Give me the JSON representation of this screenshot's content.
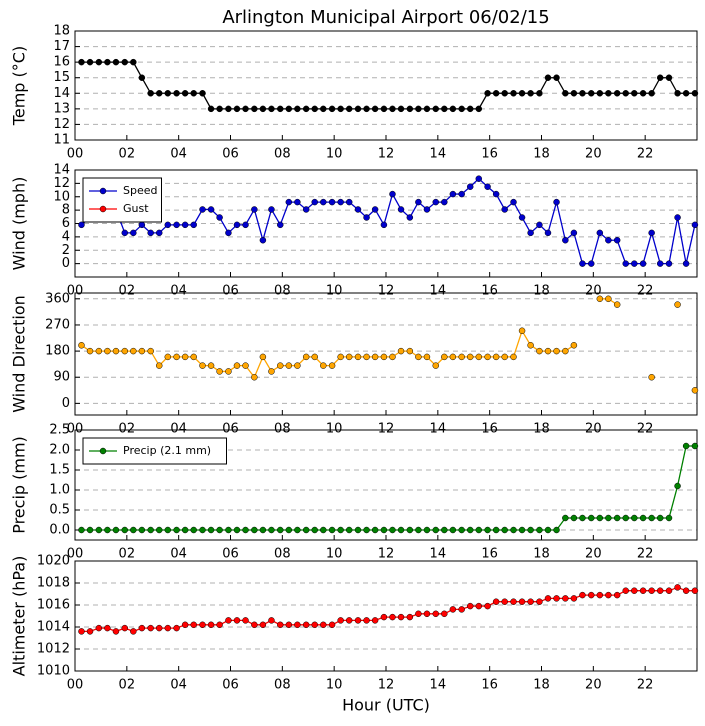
{
  "title": "Arlington Municipal Airport 06/02/15",
  "xlabel": "Hour (UTC)",
  "chart_data": [
    {
      "type": "line",
      "ylabel": "Temp (°C)",
      "x": [
        0.25,
        0.58,
        0.92,
        1.25,
        1.58,
        1.92,
        2.25,
        2.58,
        2.92,
        3.25,
        3.58,
        3.92,
        4.25,
        4.58,
        4.92,
        5.25,
        5.58,
        5.92,
        6.25,
        6.58,
        6.92,
        7.25,
        7.58,
        7.92,
        8.25,
        8.58,
        8.92,
        9.25,
        9.58,
        9.92,
        10.25,
        10.58,
        10.92,
        11.25,
        11.58,
        11.92,
        12.25,
        12.58,
        12.92,
        13.25,
        13.58,
        13.92,
        14.25,
        14.58,
        14.92,
        15.25,
        15.58,
        15.92,
        16.25,
        16.58,
        16.92,
        17.25,
        17.58,
        17.92,
        18.25,
        18.58,
        18.92,
        19.25,
        19.58,
        19.92,
        20.25,
        20.58,
        20.92,
        21.25,
        21.58,
        21.92,
        22.25,
        22.58,
        22.92,
        23.25,
        23.58,
        23.92
      ],
      "series": [
        {
          "color": "#000000",
          "values": [
            16,
            16,
            16,
            16,
            16,
            16,
            16,
            15,
            14,
            14,
            14,
            14,
            14,
            14,
            14,
            13,
            13,
            13,
            13,
            13,
            13,
            13,
            13,
            13,
            13,
            13,
            13,
            13,
            13,
            13,
            13,
            13,
            13,
            13,
            13,
            13,
            13,
            13,
            13,
            13,
            13,
            13,
            13,
            13,
            13,
            13,
            13,
            14,
            14,
            14,
            14,
            14,
            14,
            14,
            15,
            15,
            14,
            14,
            14,
            14,
            14,
            14,
            14,
            14,
            14,
            14,
            14,
            15,
            15,
            14,
            14,
            14
          ]
        }
      ],
      "xlim": [
        0,
        24
      ],
      "xticks": [
        {
          "value": 0,
          "label": "00"
        },
        {
          "value": 2,
          "label": "02"
        },
        {
          "value": 4,
          "label": "04"
        },
        {
          "value": 6,
          "label": "06"
        },
        {
          "value": 8,
          "label": "08"
        },
        {
          "value": 10,
          "label": "10"
        },
        {
          "value": 12,
          "label": "12"
        },
        {
          "value": 14,
          "label": "14"
        },
        {
          "value": 16,
          "label": "16"
        },
        {
          "value": 18,
          "label": "18"
        },
        {
          "value": 20,
          "label": "20"
        },
        {
          "value": 22,
          "label": "22"
        }
      ],
      "ylim": [
        11,
        18
      ],
      "yticks": [
        11,
        12,
        13,
        14,
        15,
        16,
        17,
        18
      ],
      "grid": true
    },
    {
      "type": "line",
      "ylabel": "Wind (mph)",
      "legend": "upper left",
      "x": [
        0.25,
        0.58,
        0.92,
        1.25,
        1.58,
        1.92,
        2.25,
        2.58,
        2.92,
        3.25,
        3.58,
        3.92,
        4.25,
        4.58,
        4.92,
        5.25,
        5.58,
        5.92,
        6.25,
        6.58,
        6.92,
        7.25,
        7.58,
        7.92,
        8.25,
        8.58,
        8.92,
        9.25,
        9.58,
        9.92,
        10.25,
        10.58,
        10.92,
        11.25,
        11.58,
        11.92,
        12.25,
        12.58,
        12.92,
        13.25,
        13.58,
        13.92,
        14.25,
        14.58,
        14.92,
        15.25,
        15.58,
        15.92,
        16.25,
        16.58,
        16.92,
        17.25,
        17.58,
        17.92,
        18.25,
        18.58,
        18.92,
        19.25,
        19.58,
        19.92,
        20.25,
        20.58,
        20.92,
        21.25,
        21.58,
        21.92,
        22.25,
        22.58,
        22.92,
        23.25,
        23.58,
        23.92
      ],
      "series": [
        {
          "name": "Speed",
          "color": "#0000cc",
          "values": [
            5.8,
            6.9,
            6.9,
            6.9,
            8.1,
            4.6,
            4.6,
            5.8,
            4.6,
            4.6,
            5.8,
            5.8,
            5.8,
            5.8,
            8.1,
            8.1,
            6.9,
            4.6,
            5.8,
            5.8,
            8.1,
            3.5,
            8.1,
            5.8,
            9.2,
            9.2,
            8.1,
            9.2,
            9.2,
            9.2,
            9.2,
            9.2,
            8.1,
            6.9,
            8.1,
            5.8,
            10.4,
            8.1,
            6.9,
            9.2,
            8.1,
            9.2,
            9.2,
            10.4,
            10.4,
            11.5,
            12.7,
            11.5,
            10.4,
            8.1,
            9.2,
            6.9,
            4.6,
            5.8,
            4.6,
            9.2,
            3.5,
            4.6,
            0,
            0,
            4.6,
            3.5,
            3.5,
            0,
            0,
            0,
            4.6,
            0,
            0,
            6.9,
            0,
            5.8
          ]
        },
        {
          "name": "Gust",
          "color": "#ff0000",
          "values": [
            null,
            null,
            null,
            null,
            null,
            null,
            null,
            null,
            null,
            null,
            null,
            null,
            null,
            null,
            null,
            null,
            null,
            null,
            null,
            null,
            null,
            null,
            null,
            null,
            null,
            null,
            null,
            null,
            null,
            null,
            null,
            null,
            null,
            null,
            null,
            null,
            null,
            null,
            null,
            null,
            null,
            null,
            null,
            null,
            null,
            null,
            null,
            null,
            null,
            null,
            null,
            null,
            null,
            null,
            null,
            null,
            null,
            null,
            null,
            null,
            null,
            null,
            null,
            null,
            null,
            null,
            null,
            null,
            null,
            null,
            null,
            null
          ]
        }
      ],
      "xlim": [
        0,
        24
      ],
      "xticks": [
        {
          "value": 0,
          "label": "00"
        },
        {
          "value": 2,
          "label": "02"
        },
        {
          "value": 4,
          "label": "04"
        },
        {
          "value": 6,
          "label": "06"
        },
        {
          "value": 8,
          "label": "08"
        },
        {
          "value": 10,
          "label": "10"
        },
        {
          "value": 12,
          "label": "12"
        },
        {
          "value": 14,
          "label": "14"
        },
        {
          "value": 16,
          "label": "16"
        },
        {
          "value": 18,
          "label": "18"
        },
        {
          "value": 20,
          "label": "20"
        },
        {
          "value": 22,
          "label": "22"
        }
      ],
      "ylim": [
        -2,
        14
      ],
      "yticks": [
        0,
        2,
        4,
        6,
        8,
        10,
        12,
        14
      ],
      "grid": true
    },
    {
      "type": "line",
      "ylabel": "Wind Direction",
      "x": [
        0.25,
        0.58,
        0.92,
        1.25,
        1.58,
        1.92,
        2.25,
        2.58,
        2.92,
        3.25,
        3.58,
        3.92,
        4.25,
        4.58,
        4.92,
        5.25,
        5.58,
        5.92,
        6.25,
        6.58,
        6.92,
        7.25,
        7.58,
        7.92,
        8.25,
        8.58,
        8.92,
        9.25,
        9.58,
        9.92,
        10.25,
        10.58,
        10.92,
        11.25,
        11.58,
        11.92,
        12.25,
        12.58,
        12.92,
        13.25,
        13.58,
        13.92,
        14.25,
        14.58,
        14.92,
        15.25,
        15.58,
        15.92,
        16.25,
        16.58,
        16.92,
        17.25,
        17.58,
        17.92,
        18.25,
        18.58,
        18.92,
        19.25,
        19.58,
        19.92,
        20.25,
        20.58,
        20.92,
        21.25,
        21.58,
        21.92,
        22.25,
        22.58,
        22.92,
        23.25,
        23.58,
        23.92
      ],
      "series": [
        {
          "color": "#ffa500",
          "values": [
            200,
            180,
            180,
            180,
            180,
            180,
            180,
            180,
            180,
            130,
            160,
            160,
            160,
            160,
            130,
            130,
            110,
            110,
            130,
            130,
            90,
            160,
            110,
            130,
            130,
            130,
            160,
            160,
            130,
            130,
            160,
            160,
            160,
            160,
            160,
            160,
            160,
            180,
            180,
            160,
            160,
            130,
            160,
            160,
            160,
            160,
            160,
            160,
            160,
            160,
            160,
            250,
            200,
            180,
            180,
            180,
            180,
            200,
            null,
            null,
            360,
            360,
            340,
            null,
            null,
            null,
            90,
            null,
            null,
            340,
            null,
            45
          ]
        }
      ],
      "xlim": [
        0,
        24
      ],
      "xticks": [
        {
          "value": 0,
          "label": "00"
        },
        {
          "value": 2,
          "label": "02"
        },
        {
          "value": 4,
          "label": "04"
        },
        {
          "value": 6,
          "label": "06"
        },
        {
          "value": 8,
          "label": "08"
        },
        {
          "value": 10,
          "label": "10"
        },
        {
          "value": 12,
          "label": "12"
        },
        {
          "value": 14,
          "label": "14"
        },
        {
          "value": 16,
          "label": "16"
        },
        {
          "value": 18,
          "label": "18"
        },
        {
          "value": 20,
          "label": "20"
        },
        {
          "value": 22,
          "label": "22"
        }
      ],
      "ylim": [
        -40,
        380
      ],
      "yticks": [
        0,
        90,
        180,
        270,
        360
      ],
      "grid": true
    },
    {
      "type": "line",
      "ylabel": "Precip (mm)",
      "legend": "upper left",
      "x": [
        0.25,
        0.58,
        0.92,
        1.25,
        1.58,
        1.92,
        2.25,
        2.58,
        2.92,
        3.25,
        3.58,
        3.92,
        4.25,
        4.58,
        4.92,
        5.25,
        5.58,
        5.92,
        6.25,
        6.58,
        6.92,
        7.25,
        7.58,
        7.92,
        8.25,
        8.58,
        8.92,
        9.25,
        9.58,
        9.92,
        10.25,
        10.58,
        10.92,
        11.25,
        11.58,
        11.92,
        12.25,
        12.58,
        12.92,
        13.25,
        13.58,
        13.92,
        14.25,
        14.58,
        14.92,
        15.25,
        15.58,
        15.92,
        16.25,
        16.58,
        16.92,
        17.25,
        17.58,
        17.92,
        18.25,
        18.58,
        18.92,
        19.25,
        19.58,
        19.92,
        20.25,
        20.58,
        20.92,
        21.25,
        21.58,
        21.92,
        22.25,
        22.58,
        22.92,
        23.25,
        23.58,
        23.92
      ],
      "series": [
        {
          "name": "Precip (2.1 mm)",
          "color": "#008000",
          "values": [
            0,
            0,
            0,
            0,
            0,
            0,
            0,
            0,
            0,
            0,
            0,
            0,
            0,
            0,
            0,
            0,
            0,
            0,
            0,
            0,
            0,
            0,
            0,
            0,
            0,
            0,
            0,
            0,
            0,
            0,
            0,
            0,
            0,
            0,
            0,
            0,
            0,
            0,
            0,
            0,
            0,
            0,
            0,
            0,
            0,
            0,
            0,
            0,
            0,
            0,
            0,
            0,
            0,
            0,
            0,
            0,
            0.3,
            0.3,
            0.3,
            0.3,
            0.3,
            0.3,
            0.3,
            0.3,
            0.3,
            0.3,
            0.3,
            0.3,
            0.3,
            1.1,
            2.1,
            2.1
          ]
        }
      ],
      "xlim": [
        0,
        24
      ],
      "xticks": [
        {
          "value": 0,
          "label": "00"
        },
        {
          "value": 2,
          "label": "02"
        },
        {
          "value": 4,
          "label": "04"
        },
        {
          "value": 6,
          "label": "06"
        },
        {
          "value": 8,
          "label": "08"
        },
        {
          "value": 10,
          "label": "10"
        },
        {
          "value": 12,
          "label": "12"
        },
        {
          "value": 14,
          "label": "14"
        },
        {
          "value": 16,
          "label": "16"
        },
        {
          "value": 18,
          "label": "18"
        },
        {
          "value": 20,
          "label": "20"
        },
        {
          "value": 22,
          "label": "22"
        }
      ],
      "ylim": [
        -0.25,
        2.5
      ],
      "yticks": [
        {
          "value": 0,
          "label": "0.0"
        },
        0.5,
        {
          "value": 1,
          "label": "1.0"
        },
        1.5,
        {
          "value": 2,
          "label": "2.0"
        },
        2.5
      ],
      "grid": true
    },
    {
      "type": "line",
      "ylabel": "Altimeter (hPa)",
      "x": [
        0.25,
        0.58,
        0.92,
        1.25,
        1.58,
        1.92,
        2.25,
        2.58,
        2.92,
        3.25,
        3.58,
        3.92,
        4.25,
        4.58,
        4.92,
        5.25,
        5.58,
        5.92,
        6.25,
        6.58,
        6.92,
        7.25,
        7.58,
        7.92,
        8.25,
        8.58,
        8.92,
        9.25,
        9.58,
        9.92,
        10.25,
        10.58,
        10.92,
        11.25,
        11.58,
        11.92,
        12.25,
        12.58,
        12.92,
        13.25,
        13.58,
        13.92,
        14.25,
        14.58,
        14.92,
        15.25,
        15.58,
        15.92,
        16.25,
        16.58,
        16.92,
        17.25,
        17.58,
        17.92,
        18.25,
        18.58,
        18.92,
        19.25,
        19.58,
        19.92,
        20.25,
        20.58,
        20.92,
        21.25,
        21.58,
        21.92,
        22.25,
        22.58,
        22.92,
        23.25,
        23.58,
        23.92
      ],
      "series": [
        {
          "color": "#ff0000",
          "values": [
            1013.6,
            1013.6,
            1013.9,
            1013.9,
            1013.6,
            1013.9,
            1013.6,
            1013.9,
            1013.9,
            1013.9,
            1013.9,
            1013.9,
            1014.2,
            1014.2,
            1014.2,
            1014.2,
            1014.2,
            1014.6,
            1014.6,
            1014.6,
            1014.2,
            1014.2,
            1014.6,
            1014.2,
            1014.2,
            1014.2,
            1014.2,
            1014.2,
            1014.2,
            1014.2,
            1014.6,
            1014.6,
            1014.6,
            1014.6,
            1014.6,
            1014.9,
            1014.9,
            1014.9,
            1014.9,
            1015.2,
            1015.2,
            1015.2,
            1015.2,
            1015.6,
            1015.6,
            1015.9,
            1015.9,
            1015.9,
            1016.3,
            1016.3,
            1016.3,
            1016.3,
            1016.3,
            1016.3,
            1016.6,
            1016.6,
            1016.6,
            1016.6,
            1016.9,
            1016.9,
            1016.9,
            1016.9,
            1016.9,
            1017.3,
            1017.3,
            1017.3,
            1017.3,
            1017.3,
            1017.3,
            1017.6,
            1017.3,
            1017.3
          ]
        }
      ],
      "xlim": [
        0,
        24
      ],
      "xticks": [
        {
          "value": 0,
          "label": "00"
        },
        {
          "value": 2,
          "label": "02"
        },
        {
          "value": 4,
          "label": "04"
        },
        {
          "value": 6,
          "label": "06"
        },
        {
          "value": 8,
          "label": "08"
        },
        {
          "value": 10,
          "label": "10"
        },
        {
          "value": 12,
          "label": "12"
        },
        {
          "value": 14,
          "label": "14"
        },
        {
          "value": 16,
          "label": "16"
        },
        {
          "value": 18,
          "label": "18"
        },
        {
          "value": 20,
          "label": "20"
        },
        {
          "value": 22,
          "label": "22"
        }
      ],
      "ylim": [
        1010,
        1020
      ],
      "yticks": [
        1010,
        1012,
        1014,
        1016,
        1018,
        1020
      ],
      "grid": true
    }
  ]
}
